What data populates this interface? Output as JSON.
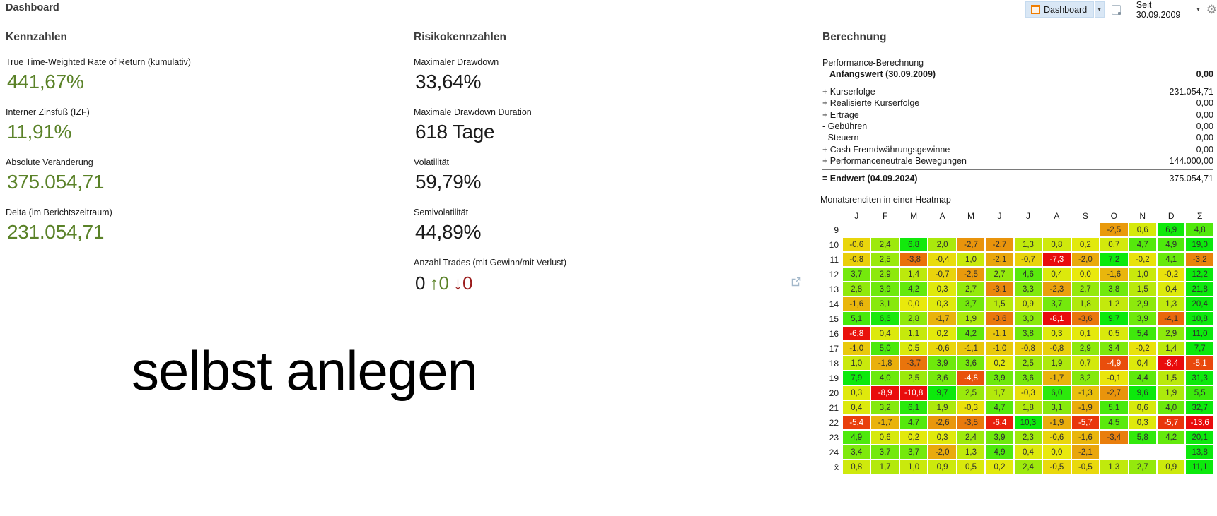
{
  "page_title": "Dashboard",
  "toolbar": {
    "view_button_label": "Dashboard",
    "period_label": "Seit 30.09.2009"
  },
  "colors": {
    "positive_green": "#5a8228",
    "negative_red": "#9b1c1c",
    "value_dark": "#1a1a1a",
    "toolbar_button_bg": "#d9e7f5",
    "view_icon_orange": "#ef7d00"
  },
  "kennzahlen": {
    "title": "Kennzahlen",
    "items": [
      {
        "label": "True Time-Weighted Rate of Return (kumulativ)",
        "value": "441,67%"
      },
      {
        "label": "Interner Zinsfuß (IZF)",
        "value": "11,91%"
      },
      {
        "label": "Absolute Veränderung",
        "value": "375.054,71"
      },
      {
        "label": "Delta (im Berichtszeitraum)",
        "value": "231.054,71"
      }
    ]
  },
  "risiko": {
    "title": "Risikokennzahlen",
    "items": [
      {
        "label": "Maximaler Drawdown",
        "value": "33,64%"
      },
      {
        "label": "Maximale Drawdown Duration",
        "value": "618 Tage"
      },
      {
        "label": "Volatilität",
        "value": "59,79%"
      },
      {
        "label": "Semivolatilität",
        "value": "44,89%"
      }
    ],
    "trades": {
      "label": "Anzahl Trades (mit Gewinn/mit Verlust)",
      "parts": [
        {
          "text": "0",
          "color": "#1a1a1a"
        },
        {
          "text": "↑0",
          "color": "#5a8228"
        },
        {
          "text": "↓0",
          "color": "#9b1c1c"
        }
      ]
    }
  },
  "watermark": "selbst anlegen",
  "berechnung": {
    "title": "Berechnung",
    "rows": [
      {
        "label": "Performance-Berechnung",
        "value": ""
      },
      {
        "label": "Anfangswert (30.09.2009)",
        "value": "0,00",
        "bold": true,
        "indent": true,
        "rule_after": true
      },
      {
        "label": "+ Kurserfolge",
        "value": "231.054,71"
      },
      {
        "label": "+ Realisierte Kurserfolge",
        "value": "0,00"
      },
      {
        "label": "+ Erträge",
        "value": "0,00"
      },
      {
        "label": "- Gebühren",
        "value": "0,00"
      },
      {
        "label": "- Steuern",
        "value": "0,00"
      },
      {
        "label": "+ Cash Fremdwährungsgewinne",
        "value": "0,00"
      },
      {
        "label": "+ Performanceneutrale Bewegungen",
        "value": "144.000,00",
        "rule_after": true
      },
      {
        "label": "= Endwert (04.09.2024)",
        "value": "375.054,71",
        "label_bold": true
      }
    ],
    "heatmap": {
      "title": "Monatsrenditen in einer Heatmap",
      "columns": [
        "J",
        "F",
        "M",
        "A",
        "M",
        "J",
        "J",
        "A",
        "S",
        "O",
        "N",
        "D",
        "Σ"
      ],
      "rows": [
        {
          "label": "9",
          "values": [
            "",
            "",
            "",
            "",
            "",
            "",
            "",
            "",
            "",
            "-2,5",
            "0,6",
            "6,9",
            "4,8"
          ]
        },
        {
          "label": "10",
          "values": [
            "-0,6",
            "2,4",
            "6,8",
            "2,0",
            "-2,7",
            "-2,7",
            "1,3",
            "0,8",
            "0,2",
            "0,7",
            "4,7",
            "4,9",
            "19,0"
          ]
        },
        {
          "label": "11",
          "values": [
            "-0,8",
            "2,5",
            "-3,8",
            "-0,4",
            "1,0",
            "-2,1",
            "-0,7",
            "-7,3",
            "-2,0",
            "7,2",
            "-0,2",
            "4,1",
            "-3,2"
          ]
        },
        {
          "label": "12",
          "values": [
            "3,7",
            "2,9",
            "1,4",
            "-0,7",
            "-2,5",
            "2,7",
            "4,6",
            "0,4",
            "0,0",
            "-1,6",
            "1,0",
            "-0,2",
            "12,2"
          ]
        },
        {
          "label": "13",
          "values": [
            "2,8",
            "3,9",
            "4,2",
            "0,3",
            "2,7",
            "-3,1",
            "3,3",
            "-2,3",
            "2,7",
            "3,8",
            "1,5",
            "0,4",
            "21,8"
          ]
        },
        {
          "label": "14",
          "values": [
            "-1,6",
            "3,1",
            "0,0",
            "0,3",
            "3,7",
            "1,5",
            "0,9",
            "3,7",
            "1,8",
            "1,2",
            "2,9",
            "1,3",
            "20,4"
          ]
        },
        {
          "label": "15",
          "values": [
            "5,1",
            "6,6",
            "2,8",
            "-1,7",
            "1,9",
            "-3,6",
            "3,0",
            "-8,1",
            "-3,6",
            "9,7",
            "3,9",
            "-4,1",
            "10,8"
          ]
        },
        {
          "label": "16",
          "values": [
            "-6,8",
            "0,4",
            "1,1",
            "0,2",
            "4,2",
            "-1,1",
            "3,8",
            "0,3",
            "0,1",
            "0,5",
            "5,4",
            "2,9",
            "11,0"
          ]
        },
        {
          "label": "17",
          "values": [
            "-1,0",
            "5,0",
            "0,5",
            "-0,6",
            "-1,1",
            "-1,0",
            "-0,8",
            "-0,8",
            "2,9",
            "3,4",
            "-0,2",
            "1,4",
            "7,7"
          ]
        },
        {
          "label": "18",
          "values": [
            "1,0",
            "-1,8",
            "-3,7",
            "3,9",
            "3,6",
            "0,2",
            "2,5",
            "1,9",
            "0,7",
            "-4,9",
            "0,4",
            "-8,4",
            "-5,1"
          ]
        },
        {
          "label": "19",
          "values": [
            "7,9",
            "4,0",
            "2,5",
            "3,6",
            "-4,8",
            "3,9",
            "3,6",
            "-1,7",
            "3,2",
            "-0,1",
            "4,4",
            "1,5",
            "31,3"
          ]
        },
        {
          "label": "20",
          "values": [
            "0,3",
            "-8,9",
            "-10,8",
            "9,7",
            "2,5",
            "1,7",
            "-0,3",
            "6,0",
            "-1,3",
            "-2,7",
            "9,6",
            "1,9",
            "5,5"
          ]
        },
        {
          "label": "21",
          "values": [
            "0,4",
            "3,2",
            "6,1",
            "1,9",
            "-0,3",
            "4,7",
            "1,8",
            "3,1",
            "-1,9",
            "5,1",
            "0,6",
            "4,0",
            "32,7"
          ]
        },
        {
          "label": "22",
          "values": [
            "-5,4",
            "-1,7",
            "4,7",
            "-2,6",
            "-3,5",
            "-6,4",
            "10,3",
            "-1,9",
            "-5,7",
            "4,5",
            "0,3",
            "-5,7",
            "-13,6"
          ]
        },
        {
          "label": "23",
          "values": [
            "4,9",
            "0,6",
            "0,2",
            "0,3",
            "2,4",
            "3,9",
            "2,3",
            "-0,6",
            "-1,6",
            "-3,4",
            "5,8",
            "4,2",
            "20,1"
          ]
        },
        {
          "label": "24",
          "values": [
            "3,4",
            "3,7",
            "3,7",
            "-2,0",
            "1,3",
            "4,9",
            "0,4",
            "0,0",
            "-2,1",
            "",
            "",
            "",
            "13,8"
          ]
        },
        {
          "label": "x̄",
          "values": [
            "0,8",
            "1,7",
            "1,0",
            "0,9",
            "0,5",
            "0,2",
            "2,4",
            "-0,5",
            "-0,5",
            "1,3",
            "2,7",
            "0,9",
            "11,1"
          ]
        }
      ]
    }
  }
}
